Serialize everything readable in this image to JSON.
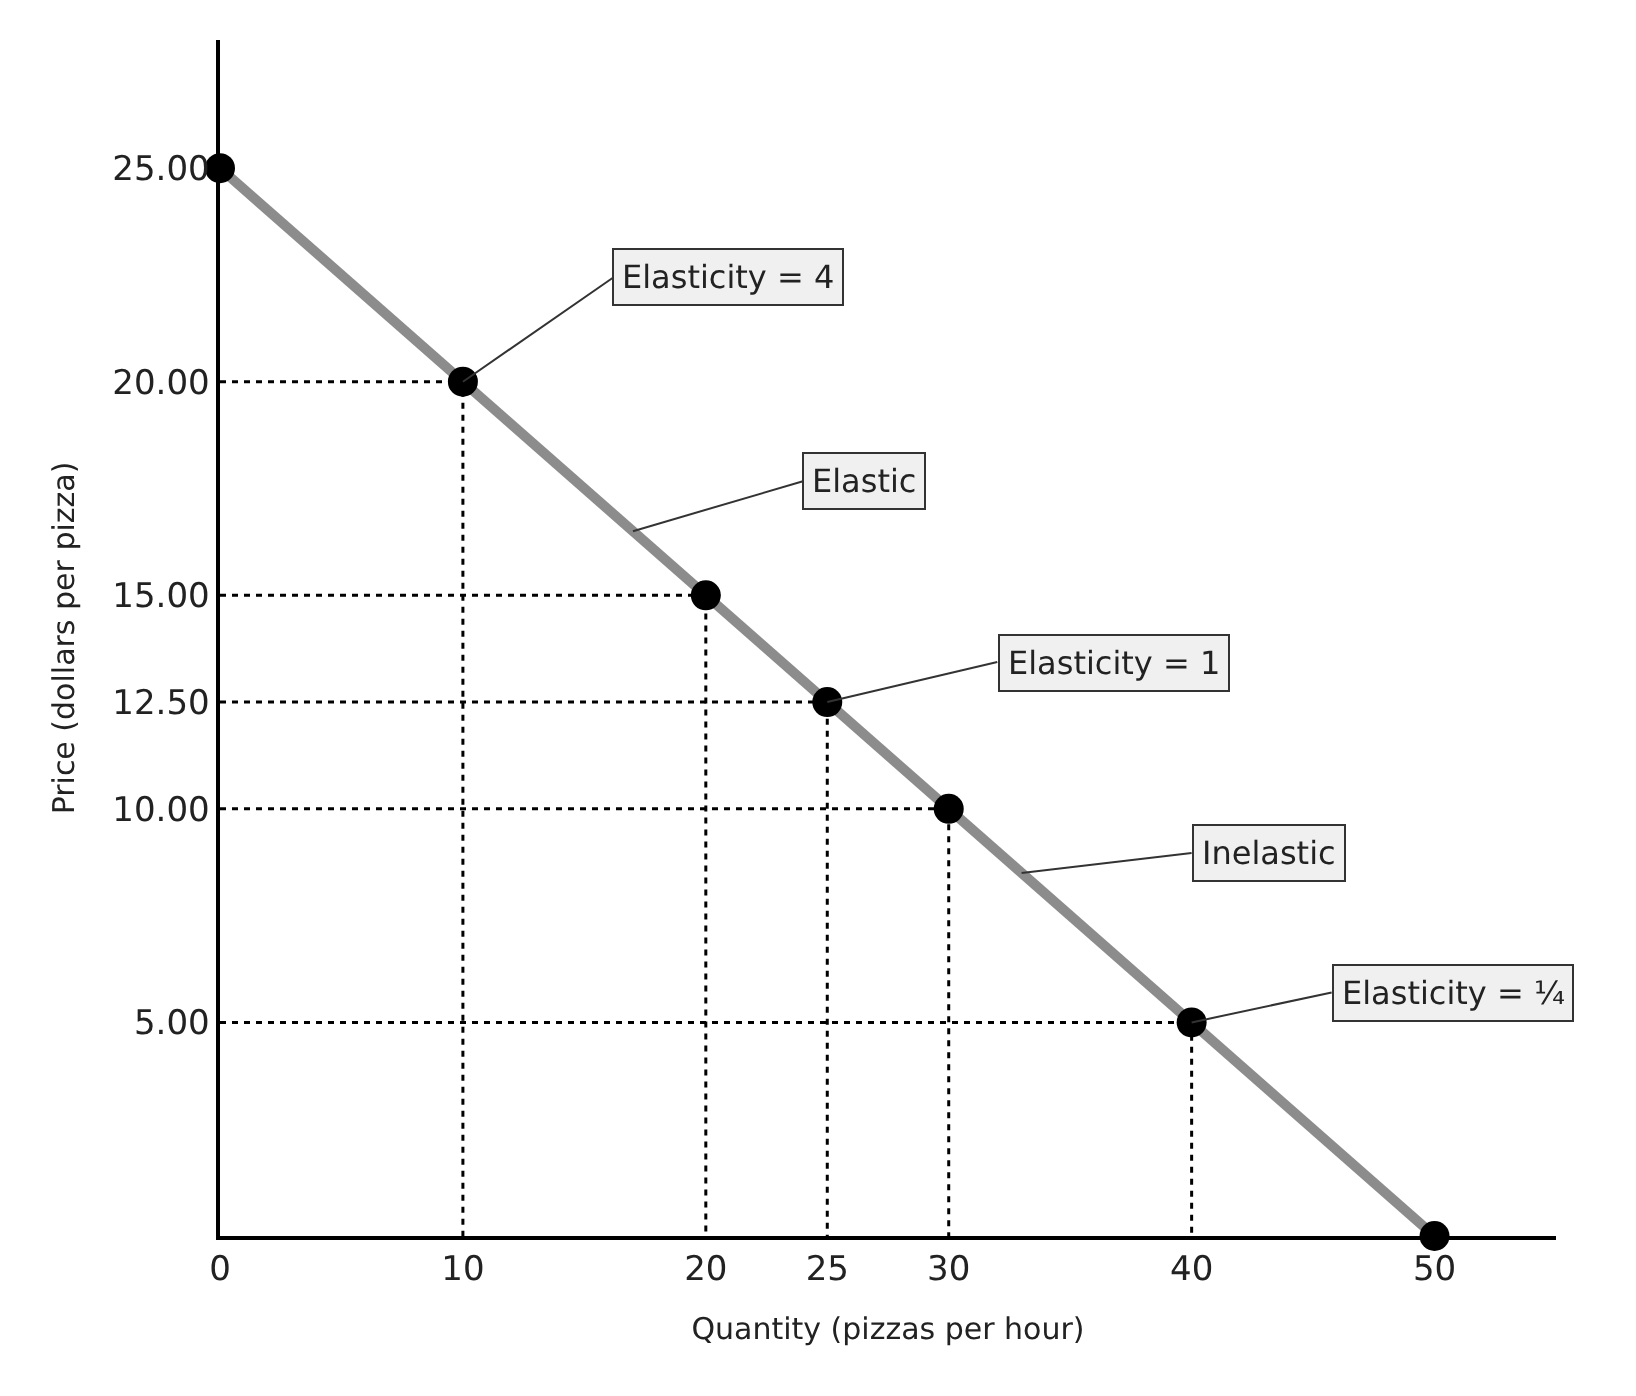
{
  "chart_data": {
    "type": "line",
    "xlabel": "Quantity (pizzas per hour)",
    "ylabel": "Price (dollars per pizza)",
    "xlim": [
      0,
      55
    ],
    "xticks": [
      0,
      10,
      20,
      25,
      30,
      40,
      50
    ],
    "ylim": [
      0,
      28
    ],
    "yticks": [
      {
        "value": 5,
        "label": "5.00"
      },
      {
        "value": 10,
        "label": "10.00"
      },
      {
        "value": 12.5,
        "label": "12.50"
      },
      {
        "value": 15,
        "label": "15.00"
      },
      {
        "value": 20,
        "label": "20.00"
      },
      {
        "value": 25,
        "label": "25.00"
      }
    ],
    "series": [
      {
        "color": "#8c8c8c",
        "marker": "none",
        "line_style": "solid",
        "x": [
          0,
          50
        ],
        "values": [
          25,
          0
        ]
      },
      {
        "type": "line",
        "color": "#000000",
        "marker": "none",
        "line_style": "dotted",
        "x": [
          0,
          10,
          10
        ],
        "values": [
          20,
          20,
          0
        ]
      },
      {
        "type": "line",
        "color": "#000000",
        "marker": "none",
        "line_style": "dotted",
        "x": [
          0,
          20,
          20
        ],
        "values": [
          15,
          15,
          0
        ]
      },
      {
        "type": "line",
        "color": "#000000",
        "marker": "none",
        "line_style": "dotted",
        "x": [
          0,
          25,
          25
        ],
        "values": [
          12.5,
          12.5,
          0
        ]
      },
      {
        "type": "line",
        "color": "#000000",
        "marker": "none",
        "line_style": "dotted",
        "x": [
          0,
          30,
          30
        ],
        "values": [
          10,
          10,
          0
        ]
      },
      {
        "type": "line",
        "color": "#000000",
        "marker": "none",
        "line_style": "dotted",
        "x": [
          0,
          40,
          40
        ],
        "values": [
          5,
          5,
          0
        ]
      },
      {
        "type": "scatter",
        "color": "#000000",
        "marker": "circle",
        "x": [
          0,
          10,
          20,
          25,
          30,
          40,
          50
        ],
        "values": [
          25,
          20,
          15,
          12.5,
          10,
          5,
          0
        ]
      }
    ],
    "annotations": [
      {
        "text": "Elasticity = 4",
        "x": 10,
        "y": 20
      },
      {
        "text": "Elastic",
        "x": 17,
        "y": 16.5
      },
      {
        "text": "Elasticity = 1",
        "x": 25,
        "y": 12.5
      },
      {
        "text": "Inelastic",
        "x": 33,
        "y": 8.5
      },
      {
        "text": "Elasticity = ¼",
        "x": 40,
        "y": 5
      }
    ]
  }
}
